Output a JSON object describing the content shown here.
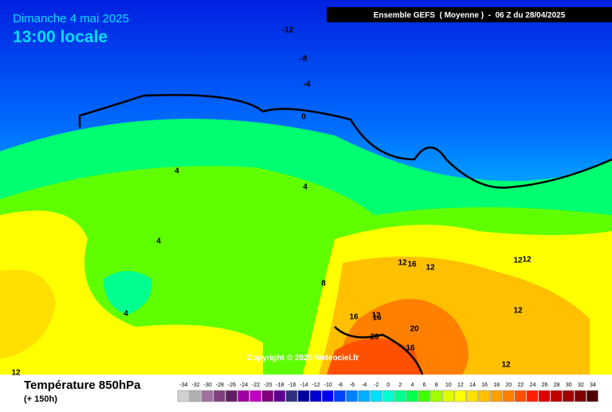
{
  "header": {
    "date": "Dimanche 4 mai 2025",
    "time": "13:00 locale",
    "model": "Ensemble GEFS  ( Moyenne )  -  06 Z du 28/04/2025"
  },
  "map": {
    "contour_labels": [
      -12,
      -8,
      -4,
      0,
      4,
      4,
      4,
      4,
      8,
      12,
      16,
      12,
      12,
      12,
      12,
      16,
      16,
      20,
      20,
      12,
      16,
      12,
      12
    ],
    "copyright": "Copyright © 2025 Meteociel.fr"
  },
  "footer": {
    "title": "Température 850hPa",
    "subtitle": "(+ 150h)"
  },
  "legend": {
    "labels": [
      -34,
      -32,
      -30,
      -28,
      -26,
      -24,
      -22,
      -20,
      -18,
      -16,
      -14,
      -12,
      -10,
      -8,
      -6,
      -4,
      -2,
      0,
      2,
      4,
      6,
      8,
      10,
      12,
      14,
      16,
      18,
      20,
      22,
      24,
      26,
      28,
      30,
      32,
      34
    ],
    "colors": [
      "#d0d0d0",
      "#b0b0b0",
      "#a070a0",
      "#804080",
      "#602060",
      "#a000a0",
      "#c000c0",
      "#800080",
      "#600090",
      "#303080",
      "#0000a0",
      "#0000d0",
      "#0000ff",
      "#0040ff",
      "#0080ff",
      "#00b0ff",
      "#00e0ff",
      "#00ffd0",
      "#00ff90",
      "#00ff50",
      "#40ff00",
      "#a0ff00",
      "#e0ff00",
      "#ffff00",
      "#ffe000",
      "#ffc000",
      "#ffa000",
      "#ff8000",
      "#ff5000",
      "#ff2000",
      "#e00000",
      "#c00000",
      "#a00000",
      "#800000",
      "#500000"
    ]
  }
}
